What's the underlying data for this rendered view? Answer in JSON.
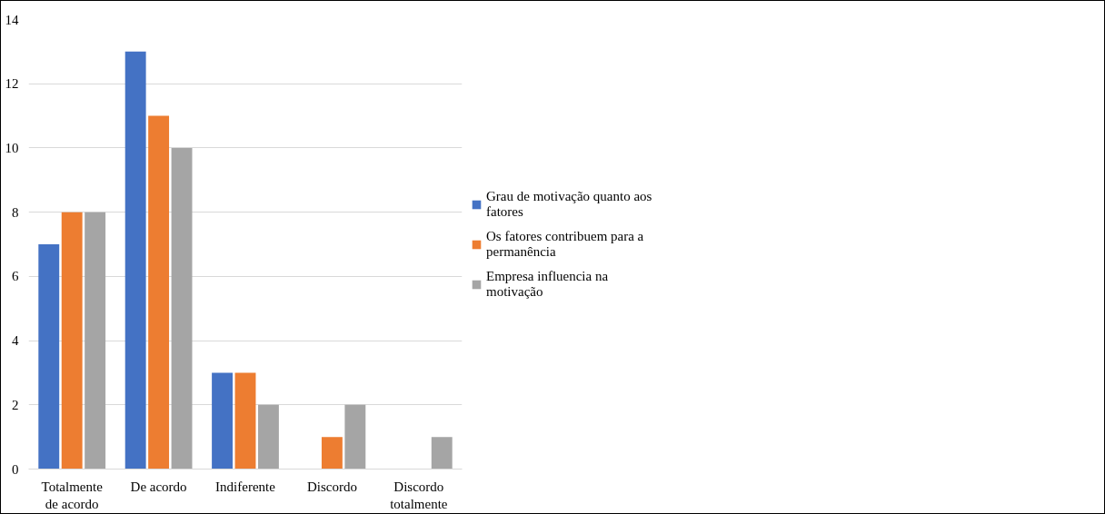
{
  "chart_data": {
    "type": "bar",
    "categories": [
      "Totalmente de acordo",
      "De acordo",
      "Indiferente",
      "Discordo",
      "Discordo totalmente"
    ],
    "series": [
      {
        "name": "Grau de motivação quanto aos fatores",
        "color": "#4472c4",
        "values": [
          7,
          13,
          3,
          0,
          0
        ]
      },
      {
        "name": "Os fatores contribuem para a permanência",
        "color": "#ed7d31",
        "values": [
          8,
          11,
          3,
          1,
          0
        ]
      },
      {
        "name": "Empresa influencia na motivação",
        "color": "#a5a5a5",
        "values": [
          8,
          10,
          2,
          2,
          1
        ]
      }
    ],
    "ylim": [
      0,
      14
    ],
    "yticks": [
      0,
      2,
      4,
      6,
      8,
      10,
      12,
      14
    ],
    "grid": "y",
    "legend": "right"
  }
}
